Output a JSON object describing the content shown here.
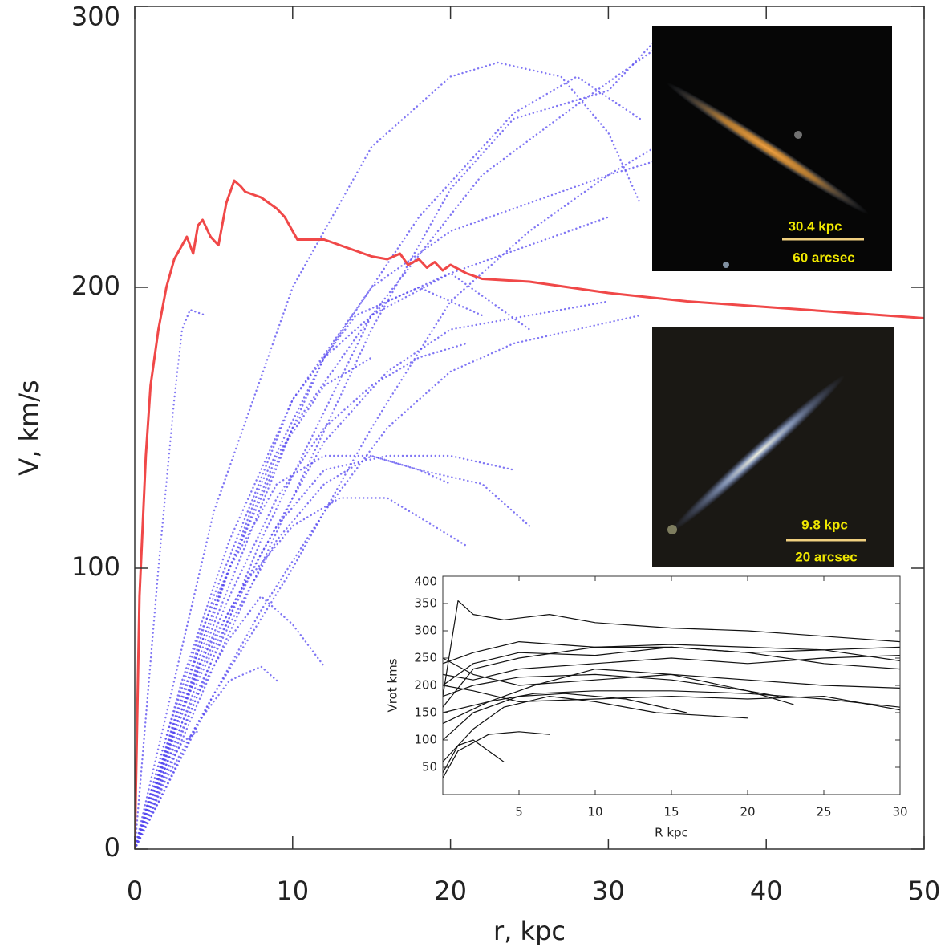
{
  "chart_data": [
    {
      "type": "line",
      "xlabel": "r,  kpc",
      "ylabel": "V,  km/s",
      "xlim": [
        0,
        50
      ],
      "ylim": [
        0,
        300
      ],
      "xticks": [
        0,
        10,
        20,
        30,
        40,
        50
      ],
      "yticks": [
        0,
        100,
        200,
        300
      ],
      "series": [
        {
          "color": "#f04848",
          "style": "solid",
          "x": [
            0,
            0.3,
            0.7,
            1,
            1.5,
            2,
            2.5,
            3,
            3.3,
            3.7,
            4,
            4.3,
            4.8,
            5.3,
            5.8,
            6.3,
            6.7,
            7,
            8,
            9,
            9.5,
            10.3,
            11,
            12,
            13,
            14,
            15,
            16,
            16.8,
            17.3,
            18,
            18.5,
            19,
            19.5,
            20,
            21,
            22,
            25,
            30,
            35,
            40,
            45,
            50
          ],
          "values": [
            0,
            90,
            140,
            165,
            185,
            200,
            210,
            215,
            218,
            212,
            222,
            224,
            218,
            215,
            230,
            238,
            236,
            234,
            232,
            228,
            225,
            217,
            217,
            217,
            215,
            213,
            211,
            210,
            212,
            208,
            210,
            207,
            209,
            206,
            208,
            205,
            203,
            202,
            198,
            195,
            193,
            191,
            189
          ]
        },
        {
          "color": "#5548f0",
          "style": "dotted",
          "x": [
            0,
            5,
            10,
            15,
            20,
            23,
            27,
            30,
            32
          ],
          "values": [
            0,
            120,
            200,
            250,
            275,
            280,
            275,
            255,
            230
          ]
        },
        {
          "color": "#5548f0",
          "style": "dotted",
          "x": [
            0,
            8,
            15,
            22,
            28,
            33
          ],
          "values": [
            0,
            110,
            190,
            240,
            265,
            285
          ]
        },
        {
          "color": "#5548f0",
          "style": "dotted",
          "x": [
            0,
            6,
            12,
            18,
            24,
            28,
            32
          ],
          "values": [
            0,
            100,
            175,
            225,
            262,
            275,
            260
          ]
        },
        {
          "color": "#5548f0",
          "style": "dotted",
          "x": [
            0,
            5,
            10,
            15,
            20,
            25,
            30,
            33
          ],
          "values": [
            0,
            90,
            160,
            200,
            220,
            230,
            240,
            245
          ]
        },
        {
          "color": "#5548f0",
          "style": "dotted",
          "x": [
            0,
            5,
            10,
            15,
            20,
            25,
            30
          ],
          "values": [
            0,
            80,
            150,
            190,
            205,
            215,
            225
          ]
        },
        {
          "color": "#5548f0",
          "style": "dotted",
          "x": [
            0,
            4,
            8,
            12,
            16,
            20,
            25
          ],
          "values": [
            0,
            70,
            130,
            175,
            195,
            205,
            185
          ]
        },
        {
          "color": "#5548f0",
          "style": "dotted",
          "x": [
            0,
            3,
            6,
            10,
            14,
            18,
            22
          ],
          "values": [
            0,
            60,
            110,
            160,
            190,
            200,
            190
          ]
        },
        {
          "color": "#5548f0",
          "style": "dotted",
          "x": [
            0,
            4,
            8,
            12,
            16,
            20,
            25,
            30
          ],
          "values": [
            0,
            60,
            105,
            145,
            170,
            185,
            190,
            195
          ]
        },
        {
          "color": "#5548f0",
          "style": "dotted",
          "x": [
            0,
            3,
            6,
            9,
            12,
            15,
            18,
            21
          ],
          "values": [
            0,
            50,
            90,
            125,
            150,
            165,
            175,
            180
          ]
        },
        {
          "color": "#5548f0",
          "style": "dotted",
          "x": [
            0,
            2,
            4,
            6,
            9,
            12,
            15,
            18,
            20
          ],
          "values": [
            0,
            40,
            75,
            100,
            130,
            140,
            140,
            135,
            130
          ]
        },
        {
          "color": "#5548f0",
          "style": "dotted",
          "x": [
            0,
            3,
            6,
            9,
            12,
            16,
            20,
            24
          ],
          "values": [
            0,
            50,
            85,
            115,
            135,
            140,
            140,
            135
          ]
        },
        {
          "color": "#5548f0",
          "style": "dotted",
          "x": [
            0,
            2,
            4,
            7,
            10,
            13,
            16,
            21
          ],
          "values": [
            0,
            35,
            65,
            95,
            115,
            125,
            125,
            108
          ]
        },
        {
          "color": "#5548f0",
          "style": "dotted",
          "x": [
            0,
            3,
            6,
            9,
            12,
            15,
            18,
            22,
            25
          ],
          "values": [
            0,
            45,
            80,
            110,
            130,
            140,
            135,
            130,
            115
          ]
        },
        {
          "color": "#5548f0",
          "style": "dotted",
          "x": [
            0,
            2,
            4,
            6,
            8,
            10,
            12
          ],
          "values": [
            0,
            30,
            55,
            75,
            90,
            80,
            65
          ]
        },
        {
          "color": "#5548f0",
          "style": "dotted",
          "x": [
            0,
            2,
            4,
            6,
            8,
            9
          ],
          "values": [
            0,
            25,
            45,
            60,
            65,
            60
          ]
        },
        {
          "color": "#5548f0",
          "style": "dotted",
          "x": [
            0,
            1,
            2,
            3,
            4
          ],
          "values": [
            0,
            15,
            28,
            38,
            42
          ]
        },
        {
          "color": "#5548f0",
          "style": "dotted",
          "x": [
            0,
            1.5,
            2.5,
            3,
            3.5,
            4.5
          ],
          "values": [
            0,
            100,
            160,
            185,
            192,
            190
          ]
        },
        {
          "color": "#5548f0",
          "style": "dotted",
          "x": [
            0,
            3,
            6,
            9,
            12,
            15
          ],
          "values": [
            0,
            55,
            100,
            140,
            165,
            175
          ]
        },
        {
          "color": "#5548f0",
          "style": "dotted",
          "x": [
            0,
            4,
            8,
            12,
            16,
            20,
            24,
            28,
            32
          ],
          "values": [
            0,
            45,
            85,
            120,
            150,
            170,
            180,
            185,
            190
          ]
        },
        {
          "color": "#5548f0",
          "style": "dotted",
          "x": [
            0,
            5,
            10,
            15,
            20,
            25,
            30,
            33
          ],
          "values": [
            0,
            55,
            100,
            150,
            195,
            220,
            240,
            250
          ]
        },
        {
          "color": "#5548f0",
          "style": "dotted",
          "x": [
            0,
            5,
            10,
            15,
            20,
            24,
            27,
            30,
            33
          ],
          "values": [
            0,
            65,
            125,
            185,
            235,
            260,
            265,
            270,
            288
          ]
        }
      ]
    },
    {
      "type": "line",
      "xlabel": "R kpc",
      "ylabel": "Vrot kms",
      "xlim": [
        0,
        30
      ],
      "ylim": [
        0,
        400
      ],
      "xticks": [
        5,
        10,
        15,
        20,
        25,
        30
      ],
      "yticks": [
        50,
        100,
        150,
        200,
        250,
        300,
        350,
        400
      ],
      "series": [
        {
          "color": "#111111",
          "style": "solid",
          "x": [
            0,
            1,
            2,
            4,
            7,
            10,
            15,
            20,
            25,
            30
          ],
          "values": [
            180,
            355,
            330,
            320,
            330,
            315,
            305,
            300,
            290,
            280
          ]
        },
        {
          "color": "#111111",
          "style": "solid",
          "x": [
            0,
            2,
            5,
            10,
            15,
            20,
            25,
            30
          ],
          "values": [
            160,
            230,
            250,
            270,
            275,
            270,
            265,
            270
          ]
        },
        {
          "color": "#111111",
          "style": "solid",
          "x": [
            0,
            2,
            5,
            10,
            15,
            20,
            25,
            30
          ],
          "values": [
            200,
            240,
            260,
            255,
            270,
            260,
            240,
            230
          ]
        },
        {
          "color": "#111111",
          "style": "solid",
          "x": [
            0,
            2,
            5,
            10,
            15,
            20,
            25,
            30
          ],
          "values": [
            220,
            210,
            230,
            240,
            250,
            240,
            250,
            255
          ]
        },
        {
          "color": "#111111",
          "style": "solid",
          "x": [
            0,
            2,
            5,
            10,
            15,
            20,
            25,
            30
          ],
          "values": [
            250,
            220,
            200,
            210,
            220,
            210,
            200,
            195
          ]
        },
        {
          "color": "#111111",
          "style": "solid",
          "x": [
            0,
            2,
            5,
            10,
            15,
            20,
            22
          ],
          "values": [
            180,
            200,
            215,
            220,
            210,
            190,
            180
          ]
        },
        {
          "color": "#111111",
          "style": "solid",
          "x": [
            0,
            3,
            6,
            10,
            15,
            20,
            25,
            30
          ],
          "values": [
            150,
            170,
            185,
            190,
            190,
            185,
            175,
            160
          ]
        },
        {
          "color": "#111111",
          "style": "solid",
          "x": [
            0,
            2,
            5,
            8,
            12,
            16
          ],
          "values": [
            100,
            150,
            180,
            185,
            175,
            150
          ]
        },
        {
          "color": "#111111",
          "style": "solid",
          "x": [
            0,
            2,
            4,
            7,
            10,
            14,
            20
          ],
          "values": [
            60,
            120,
            160,
            180,
            170,
            150,
            140
          ]
        },
        {
          "color": "#111111",
          "style": "solid",
          "x": [
            0,
            1,
            2,
            3,
            4
          ],
          "values": [
            40,
            90,
            100,
            80,
            60
          ]
        },
        {
          "color": "#111111",
          "style": "solid",
          "x": [
            0,
            1,
            3,
            5,
            7
          ],
          "values": [
            30,
            80,
            110,
            115,
            110
          ]
        },
        {
          "color": "#111111",
          "style": "solid",
          "x": [
            0,
            2,
            5,
            10,
            15,
            20,
            25,
            30
          ],
          "values": [
            200,
            190,
            170,
            175,
            180,
            175,
            180,
            155
          ]
        },
        {
          "color": "#111111",
          "style": "solid",
          "x": [
            0,
            3,
            6,
            10,
            15,
            20,
            23
          ],
          "values": [
            130,
            170,
            200,
            230,
            220,
            190,
            165
          ]
        },
        {
          "color": "#111111",
          "style": "solid",
          "x": [
            0,
            2,
            5,
            10,
            15,
            20,
            25,
            30
          ],
          "values": [
            240,
            260,
            280,
            270,
            270,
            260,
            265,
            245
          ]
        }
      ]
    }
  ],
  "images": [
    {
      "scale_length": "30.4 kpc",
      "scale_angle": "60 arcsec"
    },
    {
      "scale_length": "9.8 kpc",
      "scale_angle": "20 arcsec"
    }
  ]
}
